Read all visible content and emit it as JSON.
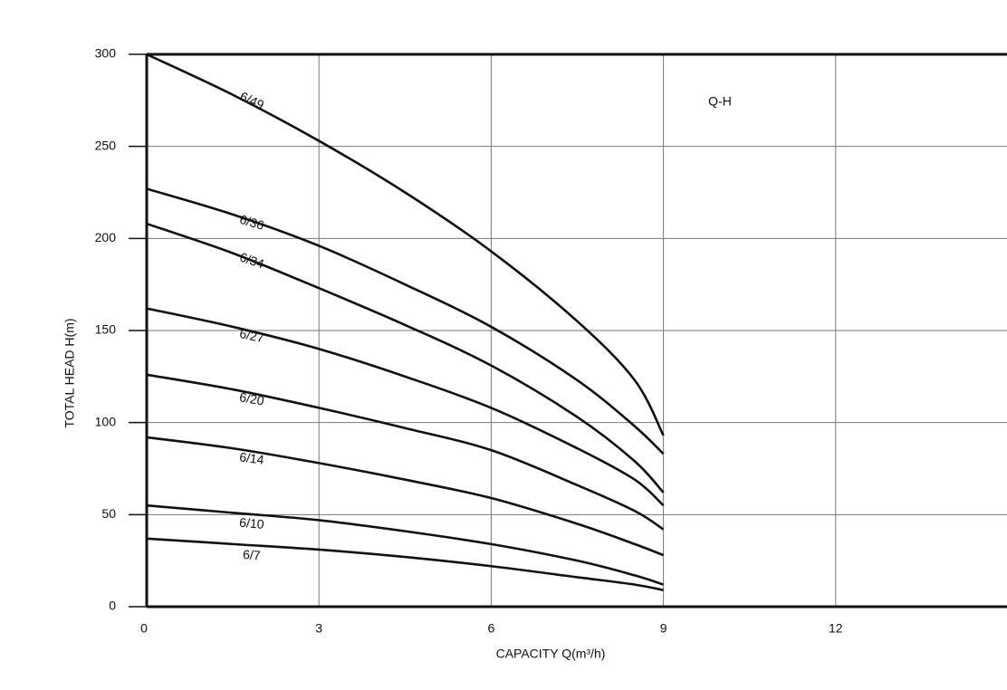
{
  "chart_data": {
    "type": "line",
    "annotation": "Q-H",
    "xlabel": "CAPACITY Q(m³/h)",
    "ylabel": "TOTAL HEAD H(m)",
    "x": [
      0,
      1.5,
      3,
      4.5,
      6,
      7.5,
      8.5,
      9
    ],
    "series": [
      {
        "name": "6/49",
        "color": "#111111",
        "values": [
          300,
          278,
          253,
          225,
          193,
          155,
          123,
          93
        ]
      },
      {
        "name": "6/36",
        "color": "#111111",
        "values": [
          227,
          213,
          196,
          175,
          152,
          123,
          98,
          83
        ]
      },
      {
        "name": "6/34",
        "color": "#111111",
        "values": [
          208,
          192,
          173,
          153,
          131,
          103,
          79,
          62
        ]
      },
      {
        "name": "6/27",
        "color": "#111111",
        "values": [
          162,
          152,
          140,
          125,
          108,
          86,
          69,
          55
        ]
      },
      {
        "name": "6/20",
        "color": "#111111",
        "values": [
          126,
          118,
          108,
          97,
          85,
          66,
          52,
          42
        ]
      },
      {
        "name": "6/14",
        "color": "#111111",
        "values": [
          92,
          86,
          78,
          69,
          59,
          45,
          34,
          28
        ]
      },
      {
        "name": "6/10",
        "color": "#111111",
        "values": [
          55,
          51,
          47,
          41,
          34,
          25,
          17,
          12
        ]
      },
      {
        "name": "6/7",
        "color": "#111111",
        "values": [
          37,
          34,
          31,
          27,
          22,
          16,
          12,
          9
        ]
      }
    ],
    "xlim": [
      0,
      15
    ],
    "xticks": [
      0,
      3,
      6,
      9,
      12
    ],
    "ylim": [
      0,
      300
    ],
    "yticks": [
      0,
      50,
      100,
      150,
      200,
      250,
      300
    ],
    "grid": true
  }
}
